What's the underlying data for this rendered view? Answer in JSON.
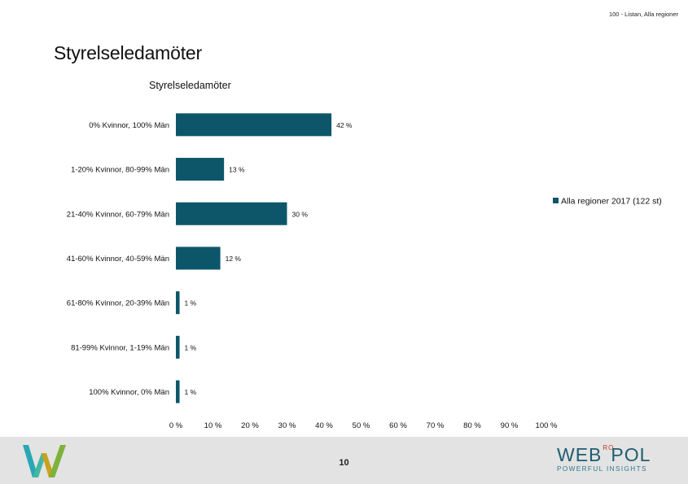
{
  "header": {
    "tag": "100 - Listan, Alla regioner",
    "title": "Styrelseledamöter"
  },
  "footer": {
    "page_number": "10",
    "brand": {
      "part1": "WEB",
      "ro": "RO",
      "part2": "POL",
      "tagline": "POWERFUL INSIGHTS"
    }
  },
  "colors": {
    "bar": "#0d566a",
    "footer_bg": "#e3e3e3"
  },
  "chart_data": {
    "type": "bar",
    "orientation": "horizontal",
    "title": "Styrelseledamöter",
    "categories": [
      "0% Kvinnor, 100% Män",
      "1-20% Kvinnor, 80-99% Män",
      "21-40% Kvinnor, 60-79% Män",
      "41-60% Kvinnor, 40-59% Män",
      "61-80% Kvinnor, 20-39% Män",
      "81-99% Kvinnor, 1-19% Män",
      "100% Kvinnor, 0% Män"
    ],
    "series": [
      {
        "name": "Alla regioner 2017 (122 st)",
        "values": [
          42,
          13,
          30,
          12,
          1,
          1,
          1
        ]
      }
    ],
    "data_labels": [
      "42 %",
      "13 %",
      "30 %",
      "12 %",
      "1 %",
      "1 %",
      "1 %"
    ],
    "xticks": [
      "0 %",
      "10 %",
      "20 %",
      "30 %",
      "40 %",
      "50 %",
      "60 %",
      "70 %",
      "80 %",
      "90 %",
      "100 %"
    ],
    "xlim": [
      0,
      100
    ],
    "grid": false,
    "legend_position": "right"
  }
}
